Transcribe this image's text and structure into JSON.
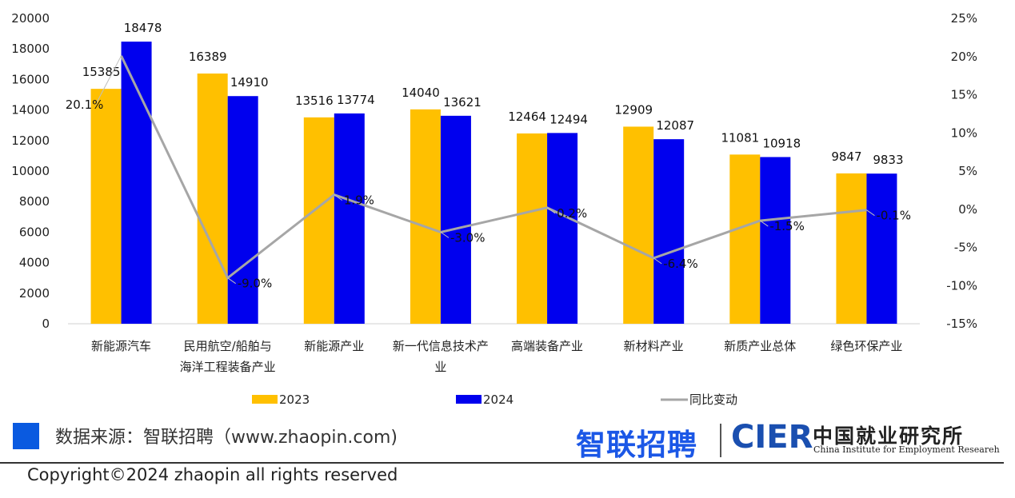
{
  "chart_data": {
    "type": "bar",
    "categories": [
      [
        "新能源汽车"
      ],
      [
        "民用航空/船舶与",
        "海洋工程装备产业"
      ],
      [
        "新能源产业"
      ],
      [
        "新一代信息技术产",
        "业"
      ],
      [
        "高端装备产业"
      ],
      [
        "新材料产业"
      ],
      [
        "新质产业总体"
      ],
      [
        "绿色环保产业"
      ]
    ],
    "series": [
      {
        "name": "2023",
        "color": "#FFC000",
        "values": [
          15385,
          16389,
          13516,
          14040,
          12464,
          12909,
          11081,
          9847
        ]
      },
      {
        "name": "2024",
        "color": "#0000EE",
        "values": [
          18478,
          14910,
          13774,
          13621,
          12494,
          12087,
          10918,
          9833
        ]
      }
    ],
    "line": {
      "name": "同比变动",
      "color": "#A6A6A6",
      "values": [
        20.1,
        -9.0,
        1.9,
        -3.0,
        0.2,
        -6.4,
        -1.5,
        -0.1
      ],
      "labels": [
        "20.1%",
        "-9.0%",
        "1.9%",
        "-3.0%",
        "0.2%",
        "-6.4%",
        "-1.5%",
        "-0.1%"
      ]
    },
    "y_left": {
      "min": 0,
      "max": 20000,
      "ticks": [
        "0",
        "2000",
        "4000",
        "6000",
        "8000",
        "10000",
        "12000",
        "14000",
        "16000",
        "18000",
        "20000"
      ]
    },
    "y_right": {
      "min": -15,
      "max": 25,
      "ticks": [
        "-15%",
        "-10%",
        "-5%",
        "0%",
        "5%",
        "10%",
        "15%",
        "20%",
        "25%"
      ]
    },
    "legend_position": "bottom"
  },
  "footer": {
    "source": "数据来源：智联招聘（www.zhaopin.com)",
    "copyright": "Copyright©2024 zhaopin all rights reserved",
    "logo_zhilian": "智联招聘",
    "logo_cier": "CIER",
    "logo_cn": "中国就业研究所",
    "logo_en": "China Institute for Employment Researeh"
  }
}
